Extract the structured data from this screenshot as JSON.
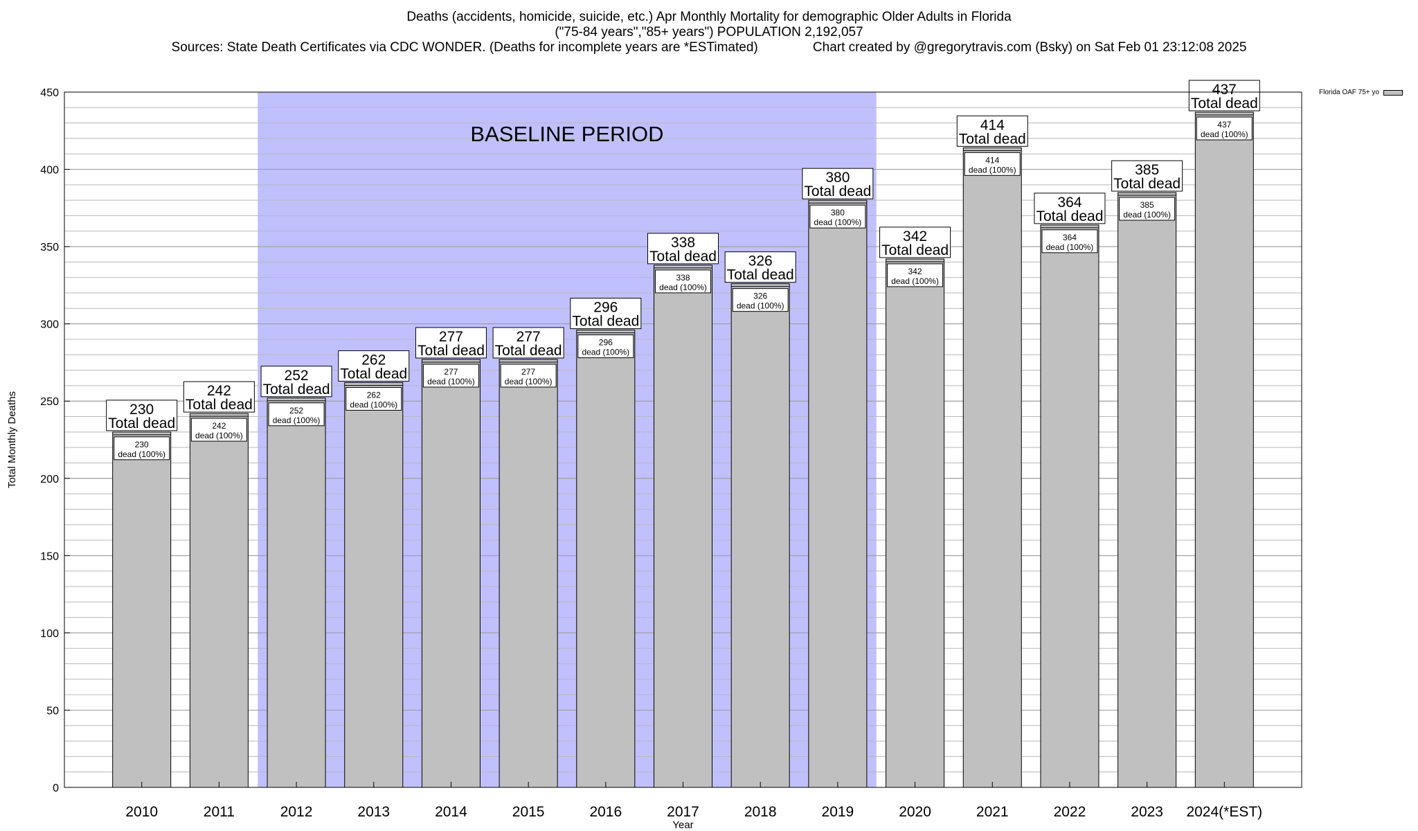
{
  "header": {
    "line1": "Deaths (accidents, homicide, suicide, etc.) Apr Monthly Mortality for demographic Older Adults in Florida",
    "line2": "(\"75-84 years\",\"85+ years\") POPULATION 2,192,057",
    "line3": "Sources: State Death Certificates via CDC WONDER. (Deaths for incomplete years are *ESTimated)               Chart created by @gregorytravis.com (Bsky) on Sat Feb 01 23:12:08 2025"
  },
  "chart_data": {
    "type": "bar",
    "categories": [
      "2010",
      "2011",
      "2012",
      "2013",
      "2014",
      "2015",
      "2016",
      "2017",
      "2018",
      "2019",
      "2020",
      "2021",
      "2022",
      "2023",
      "2024(*EST)"
    ],
    "series": [
      {
        "name": "Florida OAF 75+ yo",
        "values": [
          230,
          242,
          252,
          262,
          277,
          277,
          296,
          338,
          326,
          380,
          342,
          414,
          364,
          385,
          437
        ]
      }
    ],
    "xlabel": "Year",
    "ylabel": "Total Monthly Deaths",
    "ylim": [
      0,
      450
    ],
    "yticks": [
      0,
      50,
      100,
      150,
      200,
      250,
      300,
      350,
      400,
      450
    ],
    "grid": true,
    "legend_placement": "top-right",
    "bar_color": "#c0c0c0",
    "baseline_period": {
      "label": "BASELINE PERIOD",
      "from": "2012",
      "to": "2019",
      "color": "#c0c0ff"
    },
    "label_total_text": "Total dead",
    "label_inner_text": "dead (100%)"
  }
}
